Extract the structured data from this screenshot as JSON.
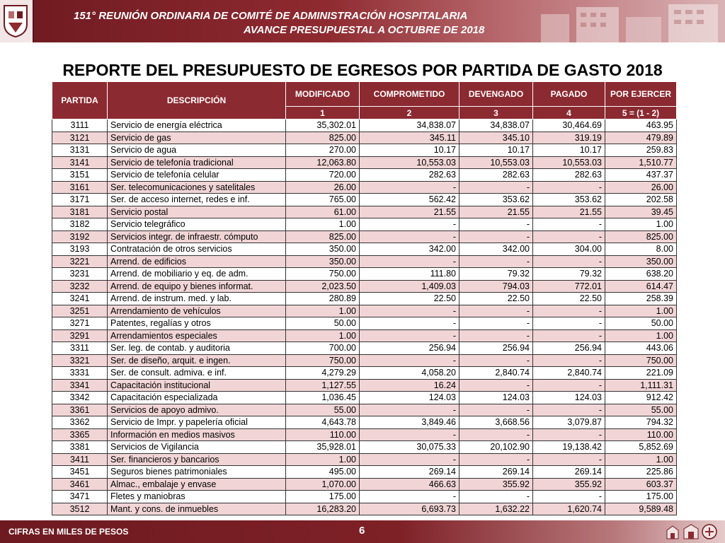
{
  "header": {
    "line1": "151° REUNIÓN ORDINARIA DE COMITÉ DE ADMINISTRACIÓN HOSPITALARIA",
    "line2": "AVANCE PRESUPUESTAL A  OCTUBRE DE 2018",
    "logo_icon": "university-crest-icon",
    "banner_image_icon": "hospital-building-icon"
  },
  "title": "REPORTE DEL PRESUPUESTO DE EGRESOS POR PARTIDA DE GASTO 2018",
  "table": {
    "headers": {
      "partida": "PARTIDA",
      "descripcion": "DESCRIPCIÓN",
      "modificado": "MODIFICADO",
      "comprometido": "COMPROMETIDO",
      "devengado": "DEVENGADO",
      "pagado": "PAGADO",
      "por_ejercer": "POR EJERCER"
    },
    "subheaders": [
      "1",
      "2",
      "3",
      "4",
      "5 = (1 - 2)"
    ],
    "rows": [
      [
        "3111",
        "Servicio de energía eléctrica",
        "35,302.01",
        "34,838.07",
        "34,838.07",
        "30,464.69",
        "463.95"
      ],
      [
        "3121",
        "Servicio de gas",
        "825.00",
        "345.11",
        "345.10",
        "319.19",
        "479.89"
      ],
      [
        "3131",
        "Servicio de agua",
        "270.00",
        "10.17",
        "10.17",
        "10.17",
        "259.83"
      ],
      [
        "3141",
        "Servicio de telefonía tradicional",
        "12,063.80",
        "10,553.03",
        "10,553.03",
        "10,553.03",
        "1,510.77"
      ],
      [
        "3151",
        "Servicio de telefonía celular",
        "720.00",
        "282.63",
        "282.63",
        "282.63",
        "437.37"
      ],
      [
        "3161",
        "Ser. telecomunicaciones y satelitales",
        "26.00",
        "-",
        "-",
        "-",
        "26.00"
      ],
      [
        "3171",
        "Ser. de acceso internet, redes e inf.",
        "765.00",
        "562.42",
        "353.62",
        "353.62",
        "202.58"
      ],
      [
        "3181",
        "Servicio postal",
        "61.00",
        "21.55",
        "21.55",
        "21.55",
        "39.45"
      ],
      [
        "3182",
        "Servicio telegráfico",
        "1.00",
        "-",
        "-",
        "-",
        "1.00"
      ],
      [
        "3192",
        "Servicios integr. de infraestr. cómputo",
        "825.00",
        "-",
        "-",
        "-",
        "825.00"
      ],
      [
        "3193",
        "Contratación de otros servicios",
        "350.00",
        "342.00",
        "342.00",
        "304.00",
        "8.00"
      ],
      [
        "3221",
        "Arrend. de edificios",
        "350.00",
        "-",
        "-",
        "-",
        "350.00"
      ],
      [
        "3231",
        "Arrend. de mobiliario y eq. de adm.",
        "750.00",
        "111.80",
        "79.32",
        "79.32",
        "638.20"
      ],
      [
        "3232",
        "Arrend. de equipo y bienes informat.",
        "2,023.50",
        "1,409.03",
        "794.03",
        "772.01",
        "614.47"
      ],
      [
        "3241",
        "Arrend. de instrum. med. y lab.",
        "280.89",
        "22.50",
        "22.50",
        "22.50",
        "258.39"
      ],
      [
        "3251",
        "Arrendamiento de vehículos",
        "1.00",
        "-",
        "-",
        "-",
        "1.00"
      ],
      [
        "3271",
        "Patentes, regalías y otros",
        "50.00",
        "-",
        "-",
        "-",
        "50.00"
      ],
      [
        "3291",
        "Arrendamientos especiales",
        "1.00",
        "-",
        "-",
        "-",
        "1.00"
      ],
      [
        "3311",
        "Ser. leg. de contab. y auditoria",
        "700.00",
        "256.94",
        "256.94",
        "256.94",
        "443.06"
      ],
      [
        "3321",
        "Ser. de diseño, arquit. e ingen.",
        "750.00",
        "-",
        "-",
        "-",
        "750.00"
      ],
      [
        "3331",
        "Ser. de consult. admiva. e inf.",
        "4,279.29",
        "4,058.20",
        "2,840.74",
        "2,840.74",
        "221.09"
      ],
      [
        "3341",
        "Capacitación institucional",
        "1,127.55",
        "16.24",
        "-",
        "-",
        "1,111.31"
      ],
      [
        "3342",
        "Capacitación especializada",
        "1,036.45",
        "124.03",
        "124.03",
        "124.03",
        "912.42"
      ],
      [
        "3361",
        "Servicios de apoyo admivo.",
        "55.00",
        "-",
        "-",
        "-",
        "55.00"
      ],
      [
        "3362",
        "Servicio de Impr. y papelería oficial",
        "4,643.78",
        "3,849.46",
        "3,668.56",
        "3,079.87",
        "794.32"
      ],
      [
        "3365",
        "Información en medios masivos",
        "110.00",
        "-",
        "-",
        "-",
        "110.00"
      ],
      [
        "3381",
        "Servicios de Vigilancia",
        "35,928.01",
        "30,075.33",
        "20,102.90",
        "19,138.42",
        "5,852.69"
      ],
      [
        "3411",
        "Ser. financieros y bancarios",
        "1.00",
        "-",
        "-",
        "-",
        "1.00"
      ],
      [
        "3451",
        "Seguros bienes patrimoniales",
        "495.00",
        "269.14",
        "269.14",
        "269.14",
        "225.86"
      ],
      [
        "3461",
        "Almac., embalaje y envase",
        "1,070.00",
        "466.63",
        "355.92",
        "355.92",
        "603.37"
      ],
      [
        "3471",
        "Fletes y maniobras",
        "175.00",
        "-",
        "-",
        "-",
        "175.00"
      ],
      [
        "3512",
        "Mant. y cons. de inmuebles",
        "16,283.20",
        "6,693.73",
        "1,632.22",
        "1,620.74",
        "9,589.48"
      ]
    ]
  },
  "footer": {
    "note": "CIFRAS EN MILES DE PESOS",
    "page_number": "6",
    "logos_icon": "institution-logos-icon"
  }
}
